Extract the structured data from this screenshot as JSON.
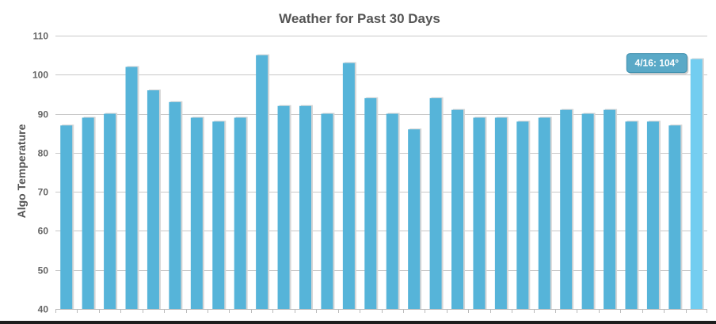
{
  "chart_data": {
    "type": "bar",
    "title": "Weather for Past 30 Days",
    "xlabel": "",
    "ylabel": "Algo Temperature",
    "ylim": [
      40,
      110
    ],
    "yticks": [
      40,
      50,
      60,
      70,
      80,
      90,
      100,
      110
    ],
    "grid": true,
    "values": [
      87,
      89,
      90,
      102,
      96,
      93,
      89,
      88,
      89,
      105,
      92,
      92,
      90,
      103,
      94,
      90,
      86,
      94,
      91,
      89,
      89,
      88,
      89,
      91,
      90,
      91,
      88,
      88,
      87,
      104
    ],
    "highlight_index": 29,
    "tooltip": "4/16: 104°",
    "colors": {
      "bar": "#56b4d9",
      "bar_highlight": "#72cdf0",
      "bar_shadow": "#d6d6d6",
      "grid": "#c8c8c8",
      "axis": "#bbbbbb",
      "tooltip_bg": "#5aa9c7",
      "tooltip_border": "#3f8fad"
    }
  }
}
